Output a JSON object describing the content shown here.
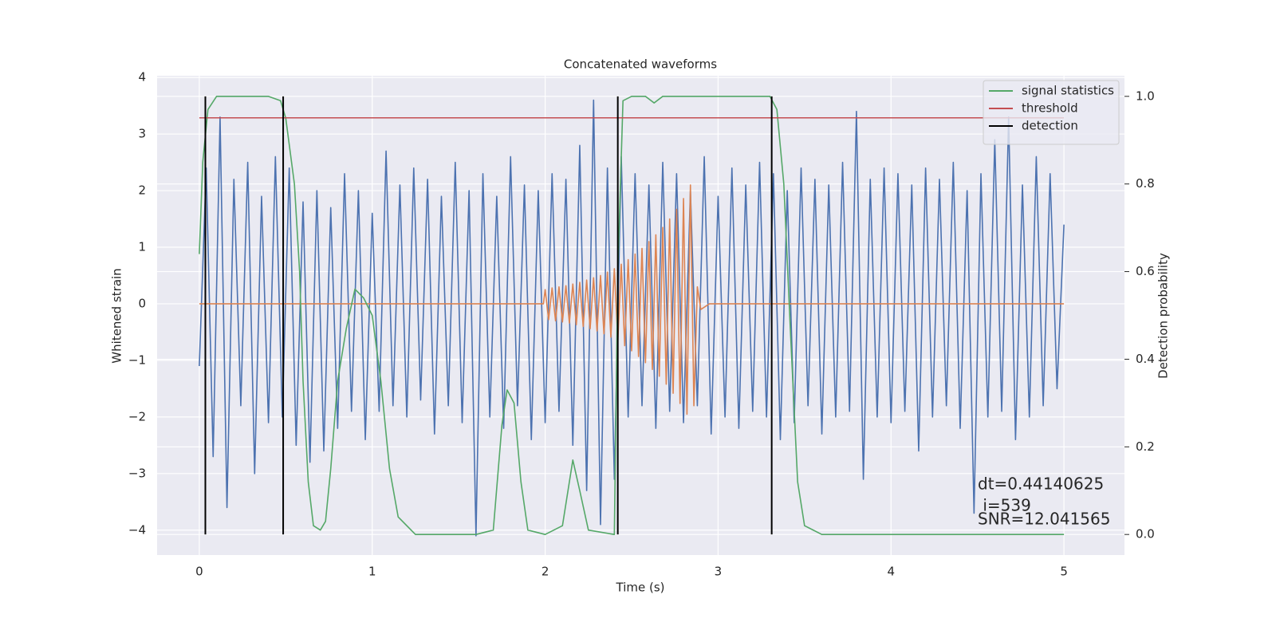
{
  "chart_data": {
    "type": "line",
    "title": "Concatenated waveforms",
    "xlabel": "Time (s)",
    "ylabel": "Whitened strain",
    "y2label": "Detection probability",
    "grid": true,
    "legend": "upper right",
    "xlim": [
      -0.244,
      5.35
    ],
    "ylim": [
      -4.44,
      4.03
    ],
    "y2lim": [
      -0.047,
      1.047
    ],
    "xticks": [
      0,
      1,
      2,
      3,
      4,
      5
    ],
    "yticks": [
      {
        "value": -4,
        "label": "−4"
      },
      {
        "value": -3,
        "label": "−3"
      },
      {
        "value": -2,
        "label": "−2"
      },
      {
        "value": -1,
        "label": "−1"
      },
      0,
      1,
      2,
      3,
      4
    ],
    "y2ticks": [
      {
        "value": 0,
        "label": "0.0"
      },
      0.2,
      0.4,
      0.6,
      0.8,
      {
        "value": 1,
        "label": "1.0"
      }
    ],
    "series": [
      {
        "color": "#4c72b0",
        "axis": "y",
        "x": [
          0,
          0.04,
          0.08,
          0.12,
          0.16,
          0.2,
          0.24,
          0.28,
          0.32,
          0.36,
          0.4,
          0.44,
          0.48,
          0.52,
          0.56,
          0.6,
          0.64,
          0.68,
          0.72,
          0.76,
          0.8,
          0.84,
          0.88,
          0.92,
          0.96,
          1,
          1.04,
          1.08,
          1.12,
          1.16,
          1.2,
          1.24,
          1.28,
          1.32,
          1.36,
          1.4,
          1.44,
          1.48,
          1.52,
          1.56,
          1.6,
          1.64,
          1.68,
          1.72,
          1.76,
          1.8,
          1.84,
          1.88,
          1.92,
          1.96,
          2,
          2.04,
          2.08,
          2.12,
          2.16,
          2.2,
          2.24,
          2.28,
          2.32,
          2.36,
          2.4,
          2.44,
          2.48,
          2.52,
          2.56,
          2.6,
          2.64,
          2.68,
          2.72,
          2.76,
          2.8,
          2.84,
          2.88,
          2.92,
          2.96,
          3,
          3.04,
          3.08,
          3.12,
          3.16,
          3.2,
          3.24,
          3.28,
          3.32,
          3.36,
          3.4,
          3.44,
          3.48,
          3.52,
          3.56,
          3.6,
          3.64,
          3.68,
          3.72,
          3.76,
          3.8,
          3.84,
          3.88,
          3.92,
          3.96,
          4,
          4.04,
          4.08,
          4.12,
          4.16,
          4.2,
          4.24,
          4.28,
          4.32,
          4.36,
          4.4,
          4.44,
          4.48,
          4.52,
          4.56,
          4.6,
          4.64,
          4.68,
          4.72,
          4.76,
          4.8,
          4.84,
          4.88,
          4.92,
          4.96,
          5
        ],
        "values": [
          -1.1,
          2.4,
          -2.7,
          3.3,
          -3.6,
          2.2,
          -1.8,
          2.5,
          -3.0,
          1.9,
          -2.1,
          2.6,
          -2.0,
          2.4,
          -2.5,
          1.8,
          -2.8,
          2.0,
          -2.6,
          1.7,
          -2.2,
          2.3,
          -1.9,
          2.0,
          -2.4,
          1.6,
          -1.9,
          2.7,
          -1.8,
          2.1,
          -2.0,
          2.4,
          -1.7,
          2.2,
          -2.3,
          1.9,
          -1.8,
          2.5,
          -2.1,
          2.0,
          -4.1,
          2.3,
          -2.0,
          1.9,
          -2.2,
          2.6,
          -1.8,
          2.1,
          -2.4,
          2.0,
          -2.1,
          2.3,
          -1.9,
          2.2,
          -2.5,
          2.8,
          -3.3,
          3.6,
          -3.9,
          2.4,
          -3.1,
          2.6,
          -2.0,
          2.3,
          -1.8,
          2.1,
          -2.2,
          2.5,
          -1.9,
          2.3,
          -2.1,
          2.0,
          -1.8,
          2.6,
          -2.3,
          1.9,
          -2.0,
          2.4,
          -2.2,
          2.1,
          -1.9,
          2.5,
          -2.0,
          2.3,
          -2.4,
          2.0,
          -2.1,
          2.4,
          -1.8,
          2.2,
          -2.3,
          2.1,
          -2.0,
          2.5,
          -1.9,
          3.4,
          -3.1,
          2.2,
          -2.0,
          2.4,
          -2.1,
          2.3,
          -1.9,
          2.1,
          -2.6,
          2.4,
          -2.0,
          2.2,
          -1.8,
          2.5,
          -2.2,
          2.0,
          -3.7,
          2.3,
          -2.0,
          2.9,
          -1.9,
          3.3,
          -2.4,
          2.1,
          -2.0,
          2.6,
          -1.8,
          2.3,
          -1.5,
          1.4
        ]
      },
      {
        "color": "#dd8452",
        "axis": "y",
        "x": [
          0,
          1.99,
          2,
          2.02,
          2.04,
          2.06,
          2.08,
          2.1,
          2.12,
          2.14,
          2.16,
          2.18,
          2.2,
          2.22,
          2.24,
          2.26,
          2.28,
          2.3,
          2.32,
          2.34,
          2.36,
          2.38,
          2.4,
          2.42,
          2.44,
          2.46,
          2.48,
          2.5,
          2.52,
          2.54,
          2.56,
          2.58,
          2.6,
          2.62,
          2.64,
          2.66,
          2.68,
          2.7,
          2.72,
          2.74,
          2.76,
          2.78,
          2.8,
          2.82,
          2.84,
          2.86,
          2.88,
          2.9,
          2.95,
          5
        ],
        "values": [
          0,
          0,
          0.25,
          -0.28,
          0.28,
          -0.3,
          0.3,
          -0.32,
          0.32,
          -0.34,
          0.35,
          -0.37,
          0.38,
          -0.4,
          0.42,
          -0.44,
          0.46,
          -0.48,
          0.5,
          -0.53,
          0.56,
          -0.59,
          0.62,
          -0.66,
          0.7,
          -0.74,
          0.78,
          -0.83,
          0.88,
          -0.93,
          0.98,
          -1.04,
          1.1,
          -1.16,
          1.22,
          -1.28,
          1.35,
          -1.42,
          1.5,
          -1.58,
          1.67,
          -1.76,
          1.86,
          -1.95,
          2.1,
          -1.8,
          0.3,
          -0.1,
          0,
          0
        ]
      },
      {
        "name": "signal statistics",
        "color": "#55a868",
        "axis": "y2",
        "x": [
          0,
          0.02,
          0.05,
          0.1,
          0.2,
          0.4,
          0.47,
          0.5,
          0.55,
          0.58,
          0.6,
          0.63,
          0.66,
          0.7,
          0.73,
          0.76,
          0.8,
          0.85,
          0.9,
          0.95,
          1.0,
          1.05,
          1.1,
          1.15,
          1.25,
          1.6,
          1.7,
          1.75,
          1.78,
          1.82,
          1.86,
          1.9,
          2.0,
          2.1,
          2.16,
          2.2,
          2.25,
          2.4,
          2.42,
          2.45,
          2.5,
          2.58,
          2.63,
          2.68,
          2.8,
          3.0,
          3.3,
          3.34,
          3.38,
          3.42,
          3.46,
          3.5,
          3.6,
          5.0
        ],
        "values": [
          0.64,
          0.85,
          0.97,
          1.0,
          1.0,
          1.0,
          0.99,
          0.95,
          0.8,
          0.6,
          0.35,
          0.12,
          0.02,
          0.01,
          0.03,
          0.15,
          0.35,
          0.47,
          0.56,
          0.54,
          0.5,
          0.35,
          0.15,
          0.04,
          0.0,
          0.0,
          0.01,
          0.25,
          0.33,
          0.3,
          0.12,
          0.01,
          0.0,
          0.02,
          0.17,
          0.1,
          0.01,
          0.0,
          0.6,
          0.99,
          1.0,
          1.0,
          0.985,
          1.0,
          1.0,
          1.0,
          1.0,
          0.97,
          0.8,
          0.45,
          0.12,
          0.02,
          0.0,
          0.0
        ]
      },
      {
        "name": "threshold",
        "color": "#c44e52",
        "axis": "y2",
        "x": [
          0,
          5
        ],
        "values": [
          0.951,
          0.951
        ]
      }
    ],
    "detection": {
      "name": "detection",
      "color": "#000000",
      "x": [
        0.035,
        0.485,
        2.42,
        3.31
      ],
      "ymin": 0,
      "ymax": 1
    },
    "annotations": [
      "dt=0.44140625",
      " i=539",
      "SNR=12.041565"
    ]
  }
}
